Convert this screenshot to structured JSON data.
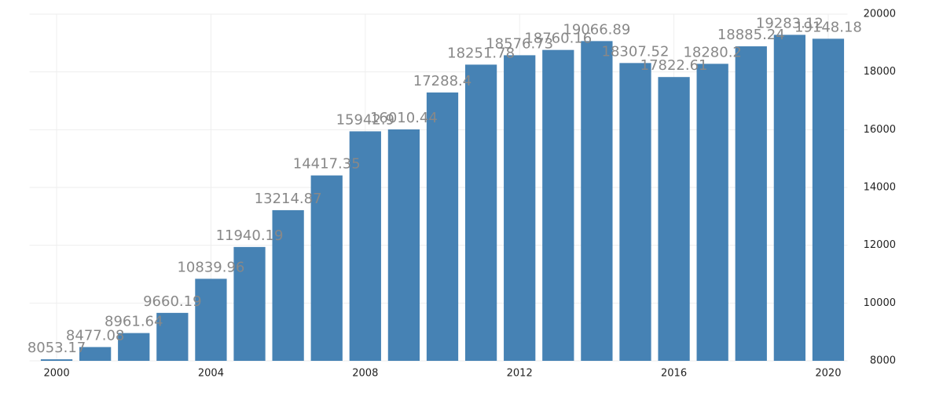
{
  "chart_data": {
    "type": "bar",
    "categories": [
      "2000",
      null,
      null,
      null,
      "2004",
      null,
      null,
      null,
      "2008",
      null,
      null,
      null,
      "2012",
      null,
      null,
      null,
      "2016",
      null,
      null,
      null,
      "2020"
    ],
    "values": [
      8053.17,
      8477.08,
      8961.64,
      9660.19,
      10839.96,
      11940.19,
      13214.87,
      14417.35,
      15942.9,
      16010.44,
      17288.4,
      18251.78,
      18576.73,
      18760.16,
      19066.89,
      18307.52,
      17822.61,
      18280.2,
      18885.24,
      19283.12,
      19148.18
    ],
    "color": "#4682b4",
    "ylim": [
      8000,
      20000
    ],
    "yticks": [
      8000,
      10000,
      12000,
      14000,
      16000,
      18000,
      20000
    ],
    "grid": true
  }
}
